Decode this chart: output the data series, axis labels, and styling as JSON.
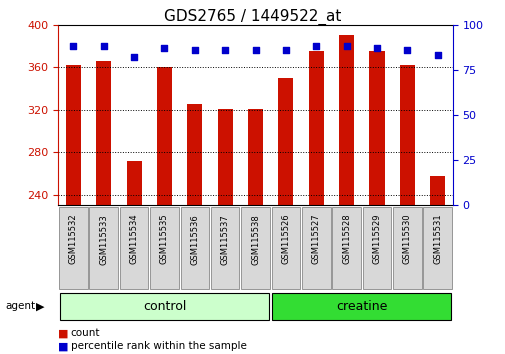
{
  "title": "GDS2765 / 1449522_at",
  "samples": [
    "GSM115532",
    "GSM115533",
    "GSM115534",
    "GSM115535",
    "GSM115536",
    "GSM115537",
    "GSM115538",
    "GSM115526",
    "GSM115527",
    "GSM115528",
    "GSM115529",
    "GSM115530",
    "GSM115531"
  ],
  "counts": [
    362,
    366,
    272,
    360,
    325,
    321,
    321,
    350,
    375,
    390,
    375,
    362,
    258
  ],
  "percentiles": [
    88,
    88,
    82,
    87,
    86,
    86,
    86,
    86,
    88,
    88,
    87,
    86,
    83
  ],
  "groups": [
    {
      "label": "control",
      "start": 0,
      "end": 7,
      "color": "#ccffcc"
    },
    {
      "label": "creatine",
      "start": 7,
      "end": 13,
      "color": "#33dd33"
    }
  ],
  "ylim_left": [
    230,
    400
  ],
  "ylim_right": [
    0,
    100
  ],
  "yticks_left": [
    240,
    280,
    320,
    360,
    400
  ],
  "yticks_right": [
    0,
    25,
    50,
    75,
    100
  ],
  "bar_color": "#cc1100",
  "dot_color": "#0000cc",
  "bar_bottom": 230,
  "background_color": "#ffffff",
  "title_fontsize": 11,
  "tick_fontsize": 8,
  "group_label_fontsize": 9,
  "legend_fontsize": 7.5
}
